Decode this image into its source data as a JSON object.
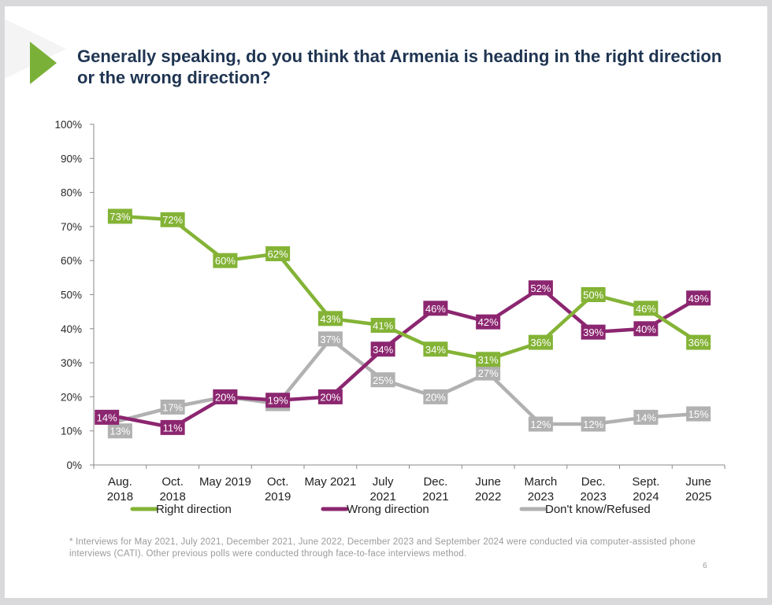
{
  "slide": {
    "title": "Generally speaking, do you think that Armenia is heading in the right direction or the wrong direction?",
    "footnote": "* Interviews for May 2021, July 2021, December 2021, June 2022, December 2023 and September 2024 were conducted via computer-assisted phone interviews (CATI). Other previous polls were conducted through face-to-face interviews method.",
    "page_number": "6"
  },
  "chart_data": {
    "type": "line",
    "title": "",
    "xlabel": "",
    "ylabel": "",
    "ylim": [
      0,
      100
    ],
    "yticks": [
      "0%",
      "10%",
      "20%",
      "30%",
      "40%",
      "50%",
      "60%",
      "70%",
      "80%",
      "90%",
      "100%"
    ],
    "categories": [
      [
        "Aug.",
        "2018"
      ],
      [
        "Oct.",
        "2018"
      ],
      [
        "May 2019",
        ""
      ],
      [
        "Oct.",
        "2019"
      ],
      [
        "May 2021",
        ""
      ],
      [
        "July",
        "2021"
      ],
      [
        "Dec.",
        "2021"
      ],
      [
        "June",
        "2022"
      ],
      [
        "March",
        "2023"
      ],
      [
        "Dec.",
        "2023"
      ],
      [
        "Sept.",
        "2024"
      ],
      [
        "June",
        "2025"
      ]
    ],
    "series": [
      {
        "name": "Right direction",
        "color": "#84b336",
        "values": [
          73,
          72,
          60,
          62,
          43,
          41,
          34,
          31,
          36,
          50,
          46,
          36
        ],
        "labels": [
          "73%",
          "72%",
          "60%",
          "62%",
          "43%",
          "41%",
          "34%",
          "31%",
          "36%",
          "50%",
          "46%",
          "36%"
        ],
        "label_positions": [
          [
            0.5,
            73
          ],
          [
            1.5,
            72
          ],
          [
            2.5,
            60
          ],
          [
            3.5,
            62
          ],
          [
            4.5,
            43
          ],
          [
            5.5,
            41
          ],
          [
            6.5,
            34
          ],
          [
            7.5,
            31
          ],
          [
            8.5,
            36
          ],
          [
            9.5,
            50
          ],
          [
            10.5,
            46
          ],
          [
            11.5,
            36
          ]
        ]
      },
      {
        "name": "Wrong direction",
        "color": "#8c2670",
        "values": [
          14,
          11,
          20,
          19,
          20,
          34,
          46,
          42,
          52,
          39,
          40,
          49
        ],
        "labels": [
          "14%",
          "11%",
          "20%",
          "19%",
          "20%",
          "34%",
          "46%",
          "42%",
          "52%",
          "39%",
          "40%",
          "49%"
        ],
        "label_positions": [
          [
            0.25,
            14
          ],
          [
            1.5,
            11
          ],
          [
            2.5,
            20
          ],
          [
            3.5,
            19
          ],
          [
            4.5,
            20
          ],
          [
            5.5,
            34
          ],
          [
            6.5,
            46
          ],
          [
            7.5,
            42
          ],
          [
            8.5,
            52
          ],
          [
            9.5,
            39
          ],
          [
            10.5,
            40
          ],
          [
            11.5,
            49
          ]
        ]
      },
      {
        "name": "Don't know/Refused",
        "color": "#b1b1b1",
        "values": [
          13,
          17,
          20,
          18,
          37,
          25,
          20,
          27,
          12,
          12,
          14,
          15
        ],
        "labels": [
          "13%",
          "17%",
          "20%",
          "18%",
          "37%",
          "25%",
          "20%",
          "27%",
          "12%",
          "12%",
          "14%",
          "15%"
        ],
        "label_positions": [
          [
            0.5,
            10
          ],
          [
            1.5,
            17
          ],
          [
            2.5,
            20
          ],
          [
            3.5,
            18
          ],
          [
            4.5,
            37
          ],
          [
            5.5,
            25
          ],
          [
            6.5,
            20
          ],
          [
            7.5,
            27
          ],
          [
            8.5,
            12
          ],
          [
            9.5,
            12
          ],
          [
            10.5,
            14
          ],
          [
            11.5,
            15
          ]
        ]
      }
    ],
    "legend": {
      "placement": "bottom"
    },
    "grid": false
  }
}
